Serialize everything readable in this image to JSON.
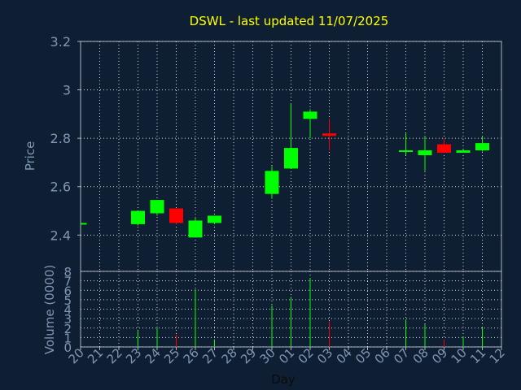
{
  "chart_data": {
    "type": "candlestick",
    "title": "DSWL - last updated 11/07/2025",
    "xlabel": "Day",
    "price_panel": {
      "ylabel": "Price",
      "ylim": [
        2.25,
        3.2
      ],
      "yticks": [
        "3.2",
        "3",
        "2.8",
        "2.6",
        "2.4"
      ],
      "ytick_values": [
        3.2,
        3.0,
        2.8,
        2.6,
        2.4
      ]
    },
    "volume_panel": {
      "ylabel": "Volume (0000)",
      "ylim": [
        0,
        8
      ],
      "yticks": [
        "8",
        "7",
        "6",
        "5",
        "4",
        "3",
        "2",
        "1",
        "0"
      ],
      "ytick_values": [
        8,
        7,
        6,
        5,
        4,
        3,
        2,
        1,
        0
      ]
    },
    "x_labels": [
      "20",
      "21",
      "22",
      "23",
      "24",
      "25",
      "26",
      "27",
      "28",
      "29",
      "30",
      "01",
      "02",
      "03",
      "04",
      "05",
      "06",
      "07",
      "08",
      "09",
      "10",
      "11",
      "12"
    ],
    "up_color": "#00ff00",
    "down_color": "#ff0000",
    "grid": true,
    "candles": [
      {
        "day": "20",
        "open": 2.45,
        "high": 2.45,
        "low": 2.45,
        "close": 2.45,
        "volume": 0,
        "direction": "up"
      },
      {
        "day": "23",
        "open": 2.445,
        "high": 2.5,
        "low": 2.44,
        "close": 2.5,
        "volume": 1.7,
        "direction": "up"
      },
      {
        "day": "24",
        "open": 2.49,
        "high": 2.545,
        "low": 2.48,
        "close": 2.545,
        "volume": 2.0,
        "direction": "up"
      },
      {
        "day": "25",
        "open": 2.51,
        "high": 2.51,
        "low": 2.445,
        "close": 2.45,
        "volume": 1.3,
        "direction": "down"
      },
      {
        "day": "26",
        "open": 2.39,
        "high": 2.475,
        "low": 2.39,
        "close": 2.46,
        "volume": 6.1,
        "direction": "up"
      },
      {
        "day": "27",
        "open": 2.45,
        "high": 2.48,
        "low": 2.445,
        "close": 2.48,
        "volume": 0.8,
        "direction": "up"
      },
      {
        "day": "30",
        "open": 2.57,
        "high": 2.685,
        "low": 2.55,
        "close": 2.665,
        "volume": 4.4,
        "direction": "up"
      },
      {
        "day": "01",
        "open": 2.675,
        "high": 2.945,
        "low": 2.675,
        "close": 2.76,
        "volume": 5.3,
        "direction": "up"
      },
      {
        "day": "02",
        "open": 2.88,
        "high": 2.92,
        "low": 2.8,
        "close": 2.91,
        "volume": 7.3,
        "direction": "up"
      },
      {
        "day": "03",
        "open": 2.82,
        "high": 2.88,
        "low": 2.75,
        "close": 2.81,
        "volume": 2.7,
        "direction": "down"
      },
      {
        "day": "07",
        "open": 2.745,
        "high": 2.82,
        "low": 2.73,
        "close": 2.75,
        "volume": 2.9,
        "direction": "up"
      },
      {
        "day": "08",
        "open": 2.73,
        "high": 2.81,
        "low": 2.665,
        "close": 2.75,
        "volume": 2.4,
        "direction": "up"
      },
      {
        "day": "09",
        "open": 2.775,
        "high": 2.8,
        "low": 2.74,
        "close": 2.74,
        "volume": 0.8,
        "direction": "down"
      },
      {
        "day": "10",
        "open": 2.74,
        "high": 2.755,
        "low": 2.74,
        "close": 2.75,
        "volume": 1.1,
        "direction": "up"
      },
      {
        "day": "11",
        "open": 2.75,
        "high": 2.81,
        "low": 2.745,
        "close": 2.78,
        "volume": 2.1,
        "direction": "up"
      }
    ]
  }
}
